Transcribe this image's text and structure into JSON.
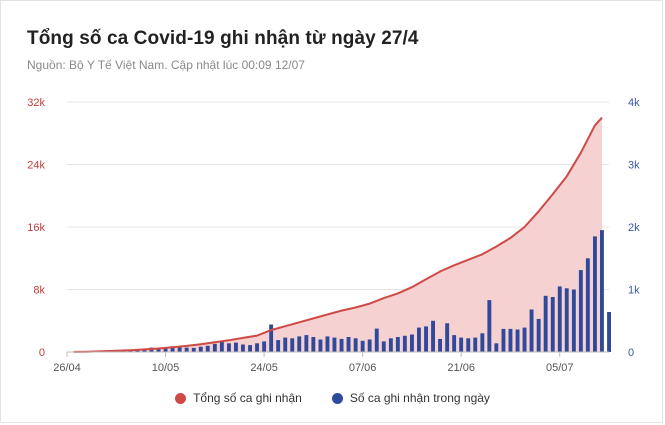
{
  "header": {
    "title": "Tổng số ca Covid-19 ghi nhận từ ngày 27/4",
    "subtitle": "Nguồn: Bộ Y Tế Việt Nam. Cập nhật lúc 00:09 12/07"
  },
  "colors": {
    "cumulative_line": "#cf4a46",
    "cumulative_fill": "#f4cccc",
    "daily_bar": "#2f4a9a",
    "left_axis_text": "#c23d3a",
    "right_axis_text": "#3a56a8",
    "x_axis_text": "#555555",
    "grid": "#e6e6e6"
  },
  "legend": [
    {
      "label": "Tổng số ca ghi nhận",
      "color": "#cf4a46"
    },
    {
      "label": "Số ca ghi nhận trong ngày",
      "color": "#2f4a9a"
    }
  ],
  "chart_data": {
    "type": "area+bar",
    "x_tick_labels": [
      "26/04",
      "10/05",
      "24/05",
      "07/06",
      "21/06",
      "05/07"
    ],
    "x_tick_dates": [
      "2021-04-26",
      "2021-05-10",
      "2021-05-24",
      "2021-06-07",
      "2021-06-21",
      "2021-07-05"
    ],
    "x_range": [
      "2021-04-26",
      "2021-07-12"
    ],
    "y_left": {
      "ticks": [
        0,
        8000,
        16000,
        24000,
        32000
      ],
      "tick_labels": [
        "0",
        "8k",
        "16k",
        "24k",
        "32k"
      ],
      "range": [
        0,
        32000
      ]
    },
    "y_right": {
      "ticks": [
        0,
        1000,
        2000,
        3000,
        4000
      ],
      "tick_labels": [
        "0",
        "1k",
        "2k",
        "3k",
        "4k"
      ],
      "range": [
        0,
        4000
      ]
    },
    "grid": true,
    "legend_position": "bottom",
    "series": [
      {
        "name": "Tổng số ca ghi nhận",
        "kind": "area",
        "axis": "left",
        "points": [
          [
            "2021-04-27",
            10
          ],
          [
            "2021-04-29",
            40
          ],
          [
            "2021-05-01",
            100
          ],
          [
            "2021-05-03",
            160
          ],
          [
            "2021-05-05",
            230
          ],
          [
            "2021-05-07",
            330
          ],
          [
            "2021-05-09",
            450
          ],
          [
            "2021-05-11",
            600
          ],
          [
            "2021-05-13",
            780
          ],
          [
            "2021-05-15",
            1000
          ],
          [
            "2021-05-17",
            1250
          ],
          [
            "2021-05-19",
            1500
          ],
          [
            "2021-05-21",
            1800
          ],
          [
            "2021-05-23",
            2100
          ],
          [
            "2021-05-25",
            2800
          ],
          [
            "2021-05-27",
            3300
          ],
          [
            "2021-05-29",
            3800
          ],
          [
            "2021-05-31",
            4300
          ],
          [
            "2021-06-02",
            4800
          ],
          [
            "2021-06-04",
            5300
          ],
          [
            "2021-06-06",
            5700
          ],
          [
            "2021-06-08",
            6200
          ],
          [
            "2021-06-10",
            6900
          ],
          [
            "2021-06-12",
            7500
          ],
          [
            "2021-06-14",
            8300
          ],
          [
            "2021-06-16",
            9300
          ],
          [
            "2021-06-18",
            10300
          ],
          [
            "2021-06-20",
            11100
          ],
          [
            "2021-06-22",
            11800
          ],
          [
            "2021-06-24",
            12500
          ],
          [
            "2021-06-26",
            13500
          ],
          [
            "2021-06-28",
            14600
          ],
          [
            "2021-06-30",
            16000
          ],
          [
            "2021-07-02",
            18000
          ],
          [
            "2021-07-04",
            20200
          ],
          [
            "2021-07-06",
            22500
          ],
          [
            "2021-07-08",
            25500
          ],
          [
            "2021-07-10",
            29000
          ],
          [
            "2021-07-11",
            30000
          ]
        ]
      },
      {
        "name": "Số ca ghi nhận trong ngày",
        "kind": "bar",
        "axis": "right",
        "points": [
          [
            "2021-04-27",
            10
          ],
          [
            "2021-04-28",
            12
          ],
          [
            "2021-04-29",
            15
          ],
          [
            "2021-04-30",
            18
          ],
          [
            "2021-05-01",
            20
          ],
          [
            "2021-05-02",
            15
          ],
          [
            "2021-05-03",
            25
          ],
          [
            "2021-05-04",
            35
          ],
          [
            "2021-05-05",
            30
          ],
          [
            "2021-05-06",
            45
          ],
          [
            "2021-05-07",
            40
          ],
          [
            "2021-05-08",
            70
          ],
          [
            "2021-05-09",
            55
          ],
          [
            "2021-05-10",
            60
          ],
          [
            "2021-05-11",
            90
          ],
          [
            "2021-05-12",
            80
          ],
          [
            "2021-05-13",
            70
          ],
          [
            "2021-05-14",
            65
          ],
          [
            "2021-05-15",
            85
          ],
          [
            "2021-05-16",
            100
          ],
          [
            "2021-05-17",
            130
          ],
          [
            "2021-05-18",
            160
          ],
          [
            "2021-05-19",
            140
          ],
          [
            "2021-05-20",
            150
          ],
          [
            "2021-05-21",
            120
          ],
          [
            "2021-05-22",
            110
          ],
          [
            "2021-05-23",
            140
          ],
          [
            "2021-05-24",
            170
          ],
          [
            "2021-05-25",
            440
          ],
          [
            "2021-05-26",
            190
          ],
          [
            "2021-05-27",
            230
          ],
          [
            "2021-05-28",
            220
          ],
          [
            "2021-05-29",
            250
          ],
          [
            "2021-05-30",
            270
          ],
          [
            "2021-05-31",
            240
          ],
          [
            "2021-06-01",
            200
          ],
          [
            "2021-06-02",
            250
          ],
          [
            "2021-06-03",
            230
          ],
          [
            "2021-06-04",
            210
          ],
          [
            "2021-06-05",
            240
          ],
          [
            "2021-06-06",
            220
          ],
          [
            "2021-06-07",
            180
          ],
          [
            "2021-06-08",
            200
          ],
          [
            "2021-06-09",
            375
          ],
          [
            "2021-06-10",
            170
          ],
          [
            "2021-06-11",
            220
          ],
          [
            "2021-06-12",
            240
          ],
          [
            "2021-06-13",
            260
          ],
          [
            "2021-06-14",
            280
          ],
          [
            "2021-06-15",
            390
          ],
          [
            "2021-06-16",
            410
          ],
          [
            "2021-06-17",
            500
          ],
          [
            "2021-06-18",
            210
          ],
          [
            "2021-06-19",
            460
          ],
          [
            "2021-06-20",
            270
          ],
          [
            "2021-06-21",
            230
          ],
          [
            "2021-06-22",
            220
          ],
          [
            "2021-06-23",
            230
          ],
          [
            "2021-06-24",
            300
          ],
          [
            "2021-06-25",
            830
          ],
          [
            "2021-06-26",
            140
          ],
          [
            "2021-06-27",
            370
          ],
          [
            "2021-06-28",
            370
          ],
          [
            "2021-06-29",
            360
          ],
          [
            "2021-06-30",
            390
          ],
          [
            "2021-07-01",
            680
          ],
          [
            "2021-07-02",
            530
          ],
          [
            "2021-07-03",
            900
          ],
          [
            "2021-07-04",
            880
          ],
          [
            "2021-07-05",
            1050
          ],
          [
            "2021-07-06",
            1020
          ],
          [
            "2021-07-07",
            1000
          ],
          [
            "2021-07-08",
            1310
          ],
          [
            "2021-07-09",
            1500
          ],
          [
            "2021-07-10",
            1850
          ],
          [
            "2021-07-11",
            1950
          ],
          [
            "2021-07-12",
            640
          ]
        ]
      }
    ]
  }
}
